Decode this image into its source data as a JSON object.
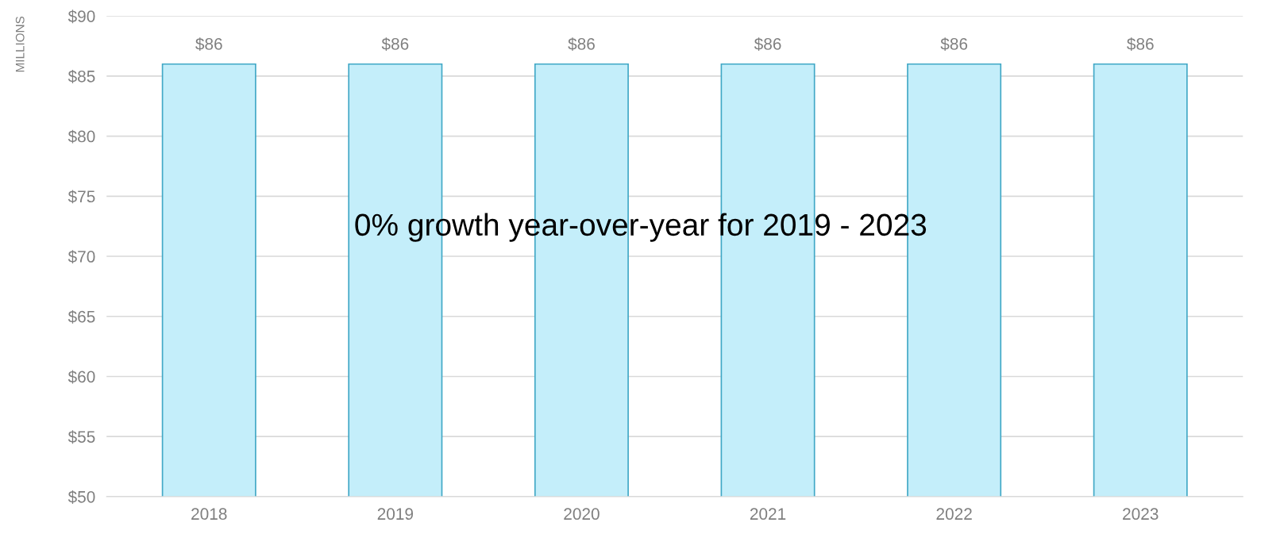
{
  "chart_data": {
    "type": "bar",
    "ylabel": "MILLIONS",
    "categories": [
      "2018",
      "2019",
      "2020",
      "2021",
      "2022",
      "2023"
    ],
    "values": [
      86,
      86,
      86,
      86,
      86,
      86
    ],
    "value_labels": [
      "$86",
      "$86",
      "$86",
      "$86",
      "$86",
      "$86"
    ],
    "color": "#c4eefa",
    "ylim": [
      50,
      90
    ],
    "yticks": [
      {
        "value": 50,
        "label": "$50"
      },
      {
        "value": 55,
        "label": "$55"
      },
      {
        "value": 60,
        "label": "$60"
      },
      {
        "value": 65,
        "label": "$65"
      },
      {
        "value": 70,
        "label": "$70"
      },
      {
        "value": 75,
        "label": "$75"
      },
      {
        "value": 80,
        "label": "$80"
      },
      {
        "value": 85,
        "label": "$85"
      },
      {
        "value": 90,
        "label": "$90"
      }
    ],
    "grid": "y",
    "annotations": [
      "0% growth year-over-year for 2019 - 2023"
    ]
  }
}
